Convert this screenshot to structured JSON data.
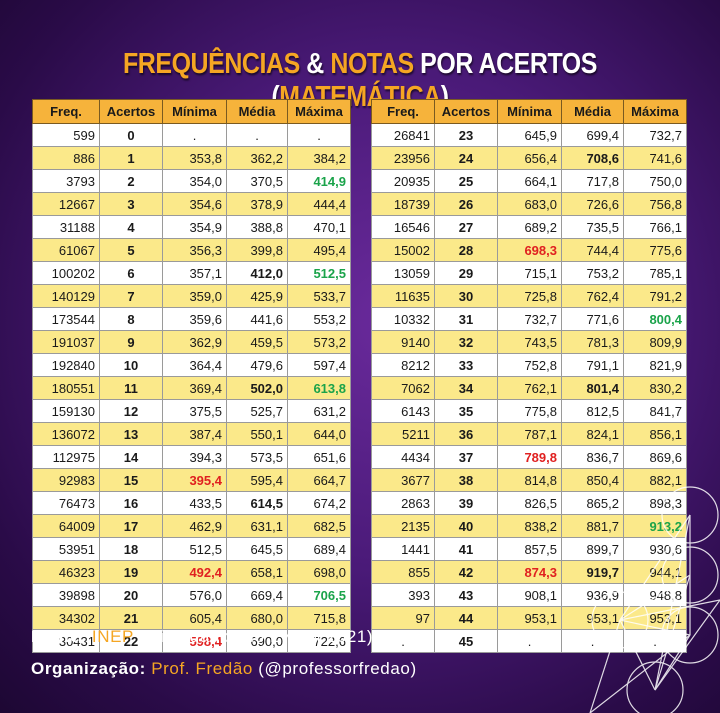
{
  "title": {
    "part1": "FREQUÊNCIAS",
    "part2": " & ",
    "part3": "NOTAS",
    "part4": " POR ACERTOS (",
    "part5": "MATEMÁTICA",
    "part6": ")"
  },
  "headers": [
    "Freq.",
    "Acertos",
    "Mínima",
    "Média",
    "Máxima"
  ],
  "rows": [
    [
      "599",
      "0",
      ".",
      ".",
      "."
    ],
    [
      "886",
      "1",
      "353,8",
      "362,2",
      "384,2"
    ],
    [
      "3793",
      "2",
      "354,0",
      "370,5",
      "414,9"
    ],
    [
      "12667",
      "3",
      "354,6",
      "378,9",
      "444,4"
    ],
    [
      "31188",
      "4",
      "354,9",
      "388,8",
      "470,1"
    ],
    [
      "61067",
      "5",
      "356,3",
      "399,8",
      "495,4"
    ],
    [
      "100202",
      "6",
      "357,1",
      "412,0",
      "512,5"
    ],
    [
      "140129",
      "7",
      "359,0",
      "425,9",
      "533,7"
    ],
    [
      "173544",
      "8",
      "359,6",
      "441,6",
      "553,2"
    ],
    [
      "191037",
      "9",
      "362,9",
      "459,5",
      "573,2"
    ],
    [
      "192840",
      "10",
      "364,4",
      "479,6",
      "597,4"
    ],
    [
      "180551",
      "11",
      "369,4",
      "502,0",
      "613,8"
    ],
    [
      "159130",
      "12",
      "375,5",
      "525,7",
      "631,2"
    ],
    [
      "136072",
      "13",
      "387,4",
      "550,1",
      "644,0"
    ],
    [
      "112975",
      "14",
      "394,3",
      "573,5",
      "651,6"
    ],
    [
      "92983",
      "15",
      "395,4",
      "595,4",
      "664,7"
    ],
    [
      "76473",
      "16",
      "433,5",
      "614,5",
      "674,2"
    ],
    [
      "64009",
      "17",
      "462,9",
      "631,1",
      "682,5"
    ],
    [
      "53951",
      "18",
      "512,5",
      "645,5",
      "689,4"
    ],
    [
      "46323",
      "19",
      "492,4",
      "658,1",
      "698,0"
    ],
    [
      "39898",
      "20",
      "576,0",
      "669,4",
      "706,5"
    ],
    [
      "34302",
      "21",
      "605,4",
      "680,0",
      "715,8"
    ],
    [
      "30431",
      "22",
      "598,4",
      "690,0",
      "722,6"
    ],
    [
      "26841",
      "23",
      "645,9",
      "699,4",
      "732,7"
    ],
    [
      "23956",
      "24",
      "656,4",
      "708,6",
      "741,6"
    ],
    [
      "20935",
      "25",
      "664,1",
      "717,8",
      "750,0"
    ],
    [
      "18739",
      "26",
      "683,0",
      "726,6",
      "756,8"
    ],
    [
      "16546",
      "27",
      "689,2",
      "735,5",
      "766,1"
    ],
    [
      "15002",
      "28",
      "698,3",
      "744,4",
      "775,6"
    ],
    [
      "13059",
      "29",
      "715,1",
      "753,2",
      "785,1"
    ],
    [
      "11635",
      "30",
      "725,8",
      "762,4",
      "791,2"
    ],
    [
      "10332",
      "31",
      "732,7",
      "771,6",
      "800,4"
    ],
    [
      "9140",
      "32",
      "743,5",
      "781,3",
      "809,9"
    ],
    [
      "8212",
      "33",
      "752,8",
      "791,1",
      "821,9"
    ],
    [
      "7062",
      "34",
      "762,1",
      "801,4",
      "830,2"
    ],
    [
      "6143",
      "35",
      "775,8",
      "812,5",
      "841,7"
    ],
    [
      "5211",
      "36",
      "787,1",
      "824,1",
      "856,1"
    ],
    [
      "4434",
      "37",
      "789,8",
      "836,7",
      "869,6"
    ],
    [
      "3677",
      "38",
      "814,8",
      "850,4",
      "882,1"
    ],
    [
      "2863",
      "39",
      "826,5",
      "865,2",
      "898,3"
    ],
    [
      "2135",
      "40",
      "838,2",
      "881,7",
      "913,2"
    ],
    [
      "1441",
      "41",
      "857,5",
      "899,7",
      "930,6"
    ],
    [
      "855",
      "42",
      "874,3",
      "919,7",
      "944,1"
    ],
    [
      "393",
      "43",
      "908,1",
      "936,9",
      "948,8"
    ],
    [
      "97",
      "44",
      "953,1",
      "953,1",
      "953,1"
    ],
    [
      ".",
      "45",
      ".",
      ".",
      "."
    ]
  ],
  "highlights": {
    "red": [
      [
        15,
        2
      ],
      [
        19,
        2
      ],
      [
        22,
        2
      ],
      [
        28,
        2
      ],
      [
        37,
        2
      ],
      [
        42,
        2
      ]
    ],
    "green": [
      [
        2,
        4
      ],
      [
        6,
        4
      ],
      [
        11,
        4
      ],
      [
        20,
        4
      ],
      [
        31,
        4
      ],
      [
        40,
        4
      ]
    ],
    "bold": [
      [
        6,
        3
      ],
      [
        11,
        3
      ],
      [
        16,
        3
      ],
      [
        24,
        3
      ],
      [
        34,
        3
      ],
      [
        42,
        3
      ]
    ]
  },
  "colors": {
    "red": "#e02020",
    "green": "#1aa34a",
    "header": "#f6b33b",
    "stripe": "#fbe98a",
    "accent": "#f5a623"
  },
  "footer": {
    "source_label": "Fonte",
    "source_value": "INEP",
    "source_note": " (Microdados do ENEM 2021)",
    "org_label": "Organização",
    "org_value": "Prof. Fredão",
    "org_handle": " (@professorfredao)"
  }
}
